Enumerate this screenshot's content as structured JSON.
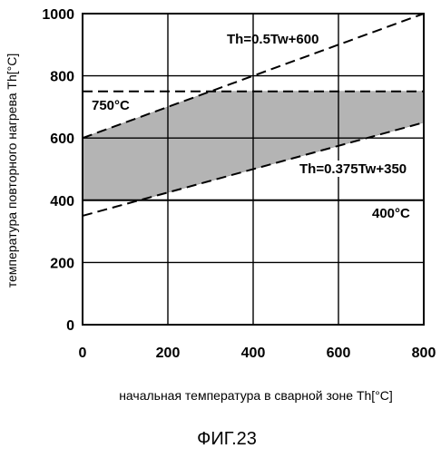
{
  "chart_data": {
    "type": "area",
    "xlabel": "начальная температура в сварной зоне Th[°C]",
    "ylabel": "температура повторного нагрева Th[°C]",
    "xlim": [
      0,
      800
    ],
    "ylim": [
      0,
      1000
    ],
    "x_ticks": [
      "0",
      "200",
      "400",
      "600",
      "800"
    ],
    "y_ticks": [
      "0",
      "200",
      "400",
      "600",
      "800",
      "1000"
    ],
    "grid": true,
    "lines": [
      {
        "label": "Th=0.5Tw+600",
        "x": [
          0,
          800
        ],
        "y": [
          600,
          1000
        ],
        "style": "dashed"
      },
      {
        "label": "Th=0.375Tw+350",
        "x": [
          0,
          800
        ],
        "y": [
          350,
          650
        ],
        "style": "dashed"
      },
      {
        "label": "750°C",
        "x": [
          0,
          800
        ],
        "y": [
          750,
          750
        ],
        "style": "dashed"
      },
      {
        "label": "400°C",
        "x": [
          0,
          800
        ],
        "y": [
          400,
          400
        ],
        "style": "solid"
      }
    ],
    "region": {
      "x": [
        0,
        300,
        800,
        800,
        133.3,
        0
      ],
      "y": [
        600,
        750,
        750,
        650,
        400,
        400
      ],
      "color": "#b4b4b4"
    }
  },
  "caption": "ФИГ.23"
}
